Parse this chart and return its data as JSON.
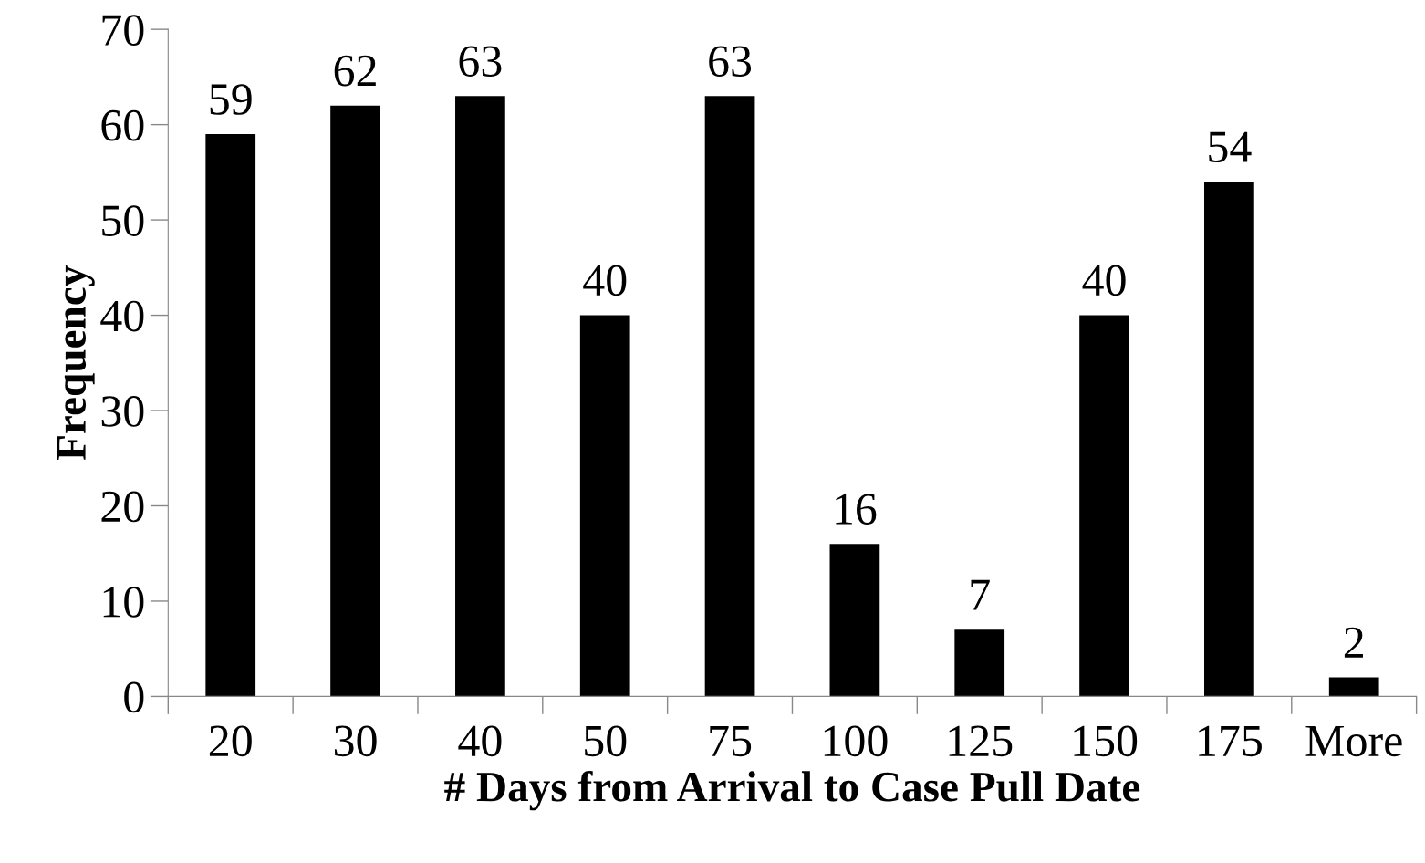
{
  "chart_data": {
    "type": "bar",
    "xlabel": "# Days from Arrival to Case Pull Date",
    "ylabel": "Frequency",
    "categories": [
      "20",
      "30",
      "40",
      "50",
      "75",
      "100",
      "125",
      "150",
      "175",
      "More"
    ],
    "values": [
      59,
      62,
      63,
      40,
      63,
      16,
      7,
      40,
      54,
      2
    ],
    "color": "#000000",
    "ylim": [
      0,
      70
    ],
    "yticks": [
      0,
      10,
      20,
      30,
      40,
      50,
      60,
      70
    ],
    "grid": false,
    "legend": false,
    "data_labels": true
  }
}
